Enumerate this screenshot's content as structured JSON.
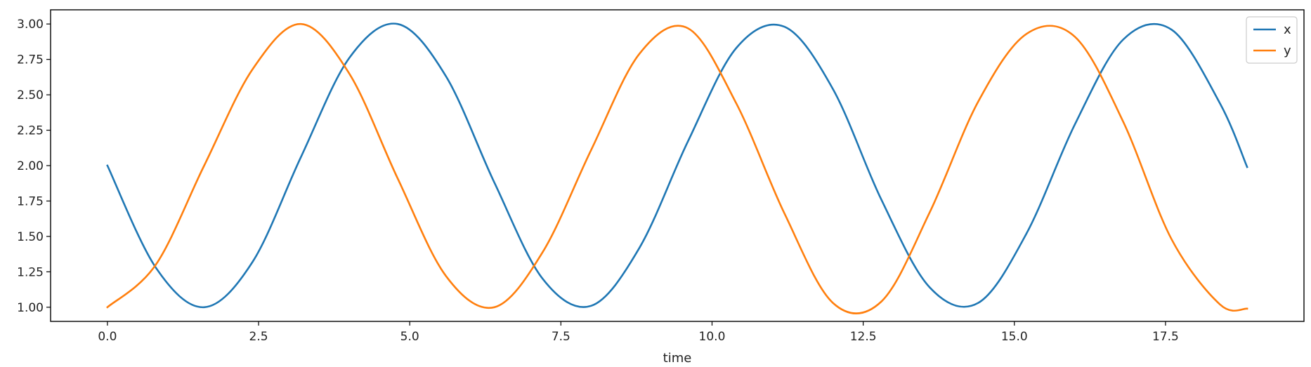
{
  "chart_data": {
    "type": "line",
    "title": "",
    "xlabel": "time",
    "ylabel": "",
    "xlim": [
      -0.94,
      19.79
    ],
    "ylim": [
      0.9,
      3.1
    ],
    "xticks": [
      0.0,
      2.5,
      5.0,
      7.5,
      10.0,
      12.5,
      15.0,
      17.5
    ],
    "xtick_labels": [
      "0.0",
      "2.5",
      "5.0",
      "7.5",
      "10.0",
      "12.5",
      "15.0",
      "17.5"
    ],
    "yticks": [
      1.0,
      1.25,
      1.5,
      1.75,
      2.0,
      2.25,
      2.5,
      2.75,
      3.0
    ],
    "ytick_labels": [
      "1.00",
      "1.25",
      "1.50",
      "1.75",
      "2.00",
      "2.25",
      "2.50",
      "2.75",
      "3.00"
    ],
    "grid": false,
    "legend_position": "top-right",
    "x": [
      0.0,
      0.8,
      1.6,
      2.4,
      3.2,
      4.0,
      4.8,
      5.6,
      6.4,
      7.2,
      8.0,
      8.8,
      9.6,
      10.4,
      11.2,
      12.0,
      12.8,
      13.6,
      14.4,
      15.2,
      16.0,
      16.8,
      17.6,
      18.4,
      18.85
    ],
    "series": [
      {
        "name": "x",
        "color": "#1f77b4",
        "values": [
          2.0,
          1.28,
          1.0,
          1.32,
          2.06,
          2.76,
          3.0,
          2.63,
          1.88,
          1.2,
          1.01,
          1.42,
          2.17,
          2.83,
          2.98,
          2.54,
          1.76,
          1.14,
          1.03,
          1.52,
          2.29,
          2.89,
          2.96,
          2.44,
          1.99
        ]
      },
      {
        "name": "y",
        "color": "#ff7f0e",
        "values": [
          1.0,
          1.3,
          2.0,
          2.68,
          3.0,
          2.65,
          1.91,
          1.22,
          1.0,
          1.39,
          2.11,
          2.79,
          2.97,
          2.44,
          1.66,
          1.03,
          1.04,
          1.67,
          2.45,
          2.93,
          2.91,
          2.31,
          1.48,
          1.02,
          0.99
        ]
      }
    ]
  }
}
